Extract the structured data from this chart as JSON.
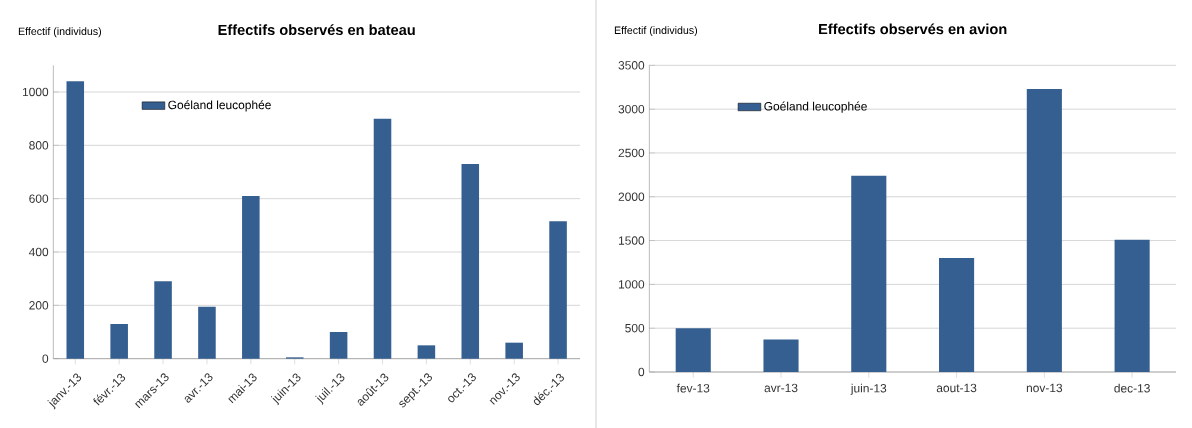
{
  "chart_data": [
    {
      "type": "bar",
      "title": "Effectifs observés en bateau",
      "ylabel": "Effectif (individus)",
      "categories": [
        "janv.-13",
        "févr.-13",
        "mars-13",
        "avr.-13",
        "mai-13",
        "juin-13",
        "juil.-13",
        "août-13",
        "sept.-13",
        "oct.-13",
        "nov.-13",
        "déc.-13"
      ],
      "series": [
        {
          "name": "Goéland leucophée",
          "color": "#355f91",
          "values": [
            1040,
            130,
            290,
            195,
            610,
            5,
            100,
            900,
            50,
            730,
            60,
            515
          ]
        }
      ],
      "ylim": [
        0,
        1100
      ],
      "yticks": [
        0,
        200,
        400,
        600,
        800,
        1000
      ],
      "grid": "y",
      "legend": "top left"
    },
    {
      "type": "bar",
      "title": "Effectifs observés en avion",
      "ylabel": "Effectif (individus)",
      "categories": [
        "fev-13",
        "avr-13",
        "juin-13",
        "aout-13",
        "nov-13",
        "dec-13"
      ],
      "series": [
        {
          "name": "Goéland leucophée",
          "color": "#355f91",
          "values": [
            500,
            370,
            2240,
            1300,
            3230,
            1510
          ]
        }
      ],
      "ylim": [
        0,
        3500
      ],
      "yticks": [
        0,
        500,
        1000,
        1500,
        2000,
        2500,
        3000,
        3500
      ],
      "grid": "y",
      "legend": "top left"
    }
  ]
}
